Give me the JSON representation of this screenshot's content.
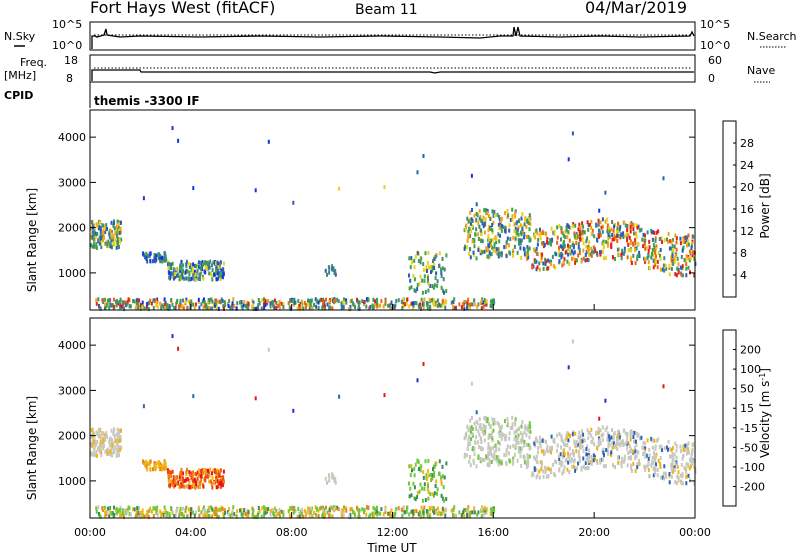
{
  "header": {
    "station": "Fort Hays West (fitACF)",
    "beam": "Beam 11",
    "date": "04/Mar/2019"
  },
  "panels": {
    "nsky": {
      "left_label": "N.Sky",
      "left_ticks": [
        "10^5",
        "10^0"
      ],
      "right_ticks": [
        "10^5",
        "10^0"
      ],
      "right_label": "N.Search"
    },
    "freq": {
      "left_label_1": "Freq.",
      "left_label_2": "[MHz]",
      "left_ticks": [
        "18",
        "8"
      ],
      "right_ticks": [
        "60",
        "0"
      ],
      "right_label": "Nave"
    },
    "cpid": {
      "label": "CPID",
      "mode": "themis -3300 IF"
    }
  },
  "chart_data": [
    {
      "type": "scatter",
      "name": "power",
      "ylabel": "Slant Range [km]",
      "ylim": [
        180,
        4600
      ],
      "xlim": [
        0,
        24
      ],
      "yticks": [
        "1000",
        "2000",
        "3000",
        "4000"
      ],
      "colorbar": {
        "label": "Power [dB]",
        "ticks": [
          "4",
          "8",
          "12",
          "16",
          "20",
          "24",
          "28"
        ],
        "colors": [
          "#1432e6",
          "#2a5cb8",
          "#3f8a7c",
          "#3fa24a",
          "#e8d21a",
          "#f5a21a",
          "#f06414",
          "#e61e14"
        ]
      }
    },
    {
      "type": "scatter",
      "name": "velocity",
      "ylabel": "Slant Range [km]",
      "ylim": [
        180,
        4600
      ],
      "xlim": [
        0,
        24
      ],
      "yticks": [
        "1000",
        "2000",
        "3000",
        "4000"
      ],
      "xticks": [
        "00:00",
        "04:00",
        "08:00",
        "12:00",
        "16:00",
        "20:00",
        "00:00"
      ],
      "xlabel": "Time UT",
      "colorbar": {
        "label": "Velocity [m s",
        "label_sup": "-1",
        "label_end": "]",
        "ticks": [
          "200",
          "100",
          "50",
          "15",
          "-15",
          "-50",
          "-100",
          "-200"
        ],
        "colors": [
          "#1e32c8",
          "#2a64b4",
          "#3a8a5a",
          "#6ec83c",
          "#c8c8c0",
          "#f0b414",
          "#f08214",
          "#f04614",
          "#e61414"
        ]
      }
    }
  ]
}
